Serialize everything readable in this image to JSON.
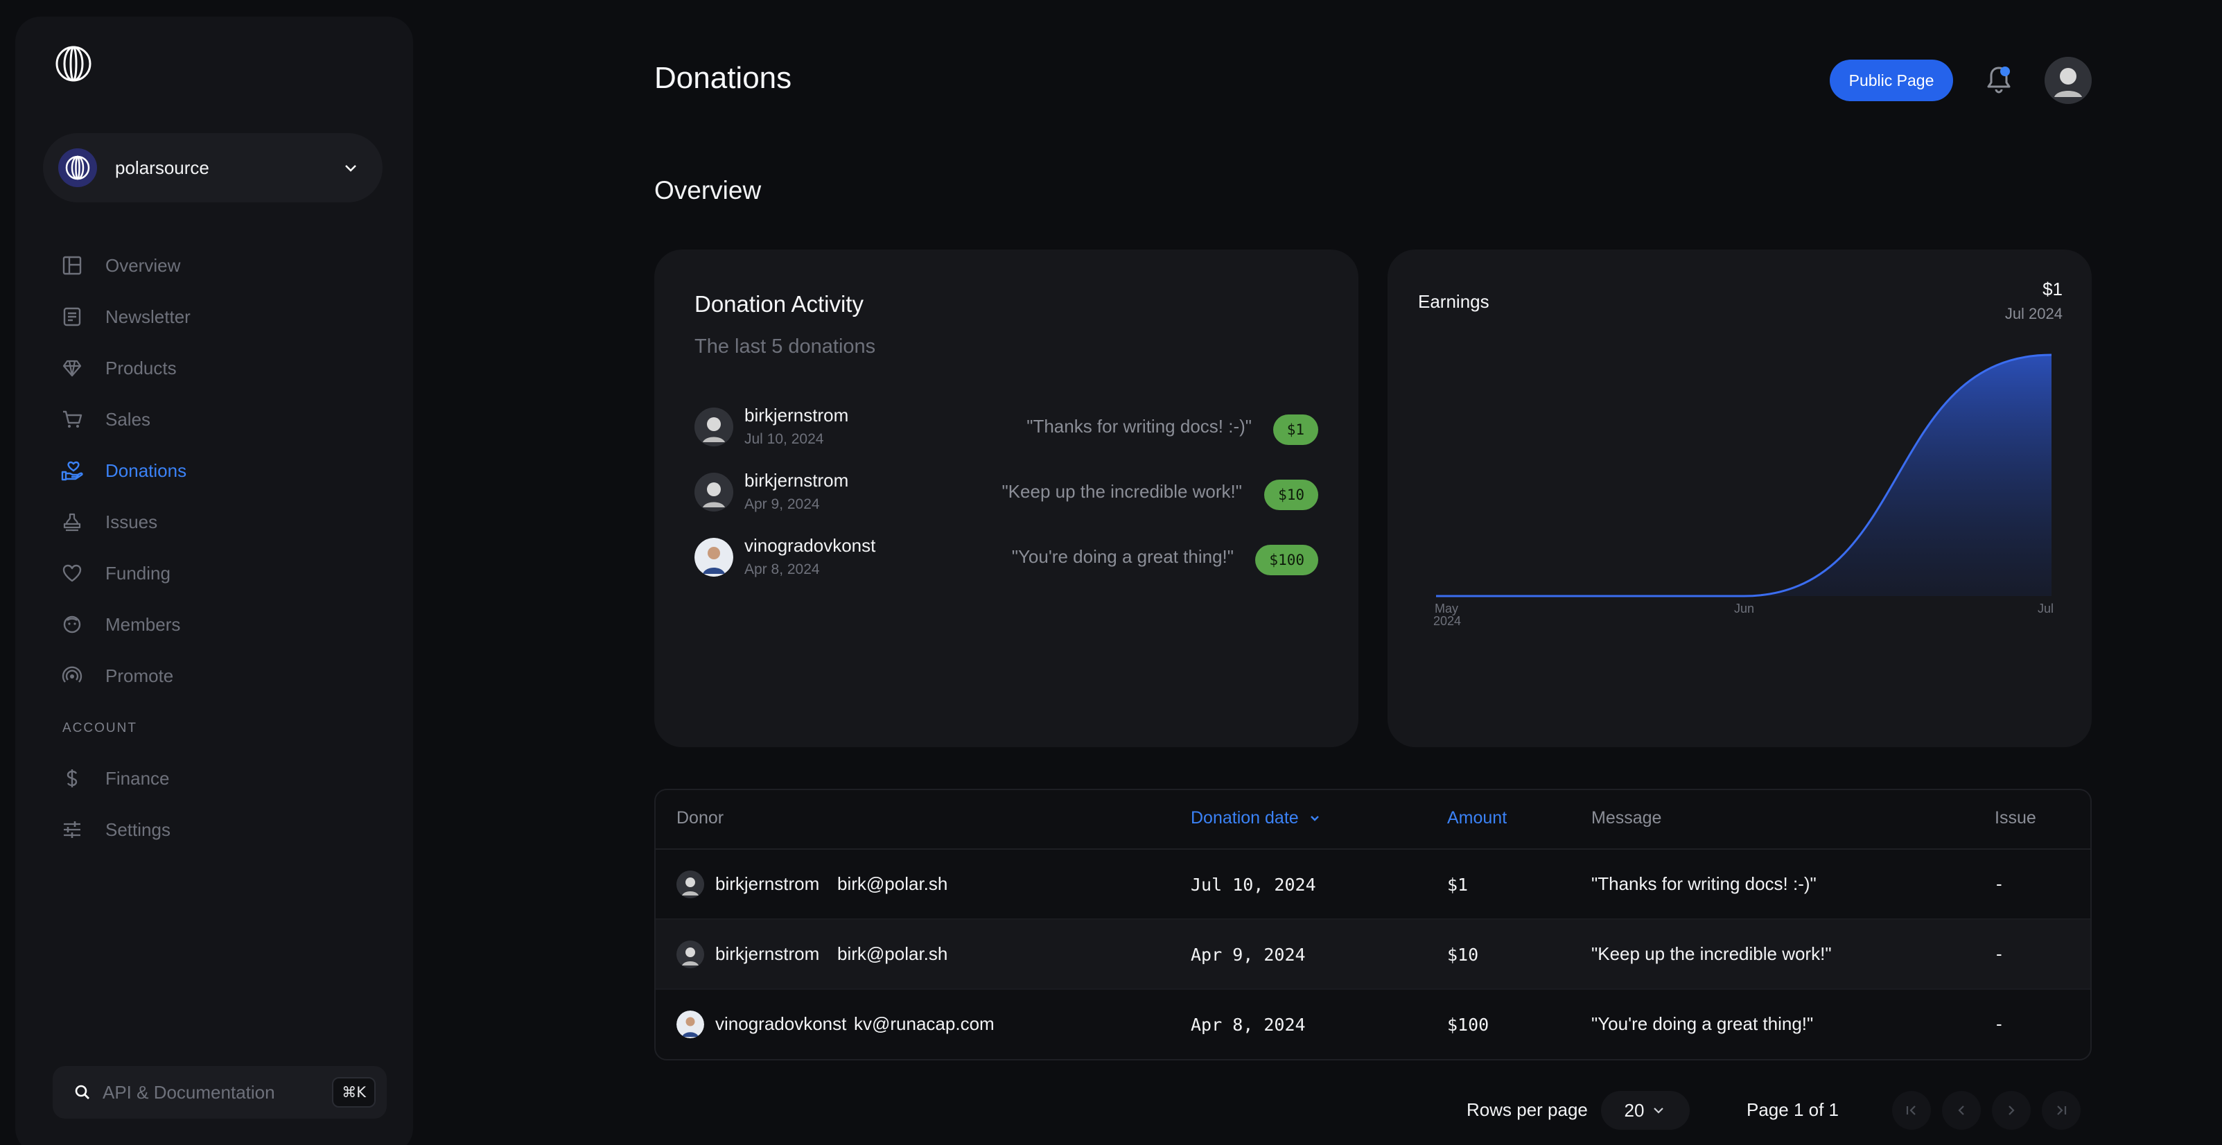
{
  "sidebar": {
    "org_name": "polarsource",
    "items": [
      {
        "label": "Overview",
        "icon": "layout-icon"
      },
      {
        "label": "Newsletter",
        "icon": "newsletter-icon"
      },
      {
        "label": "Products",
        "icon": "diamond-icon"
      },
      {
        "label": "Sales",
        "icon": "cart-icon"
      },
      {
        "label": "Donations",
        "icon": "hand-heart-icon",
        "active": true
      },
      {
        "label": "Issues",
        "icon": "stamp-icon"
      },
      {
        "label": "Funding",
        "icon": "heart-icon"
      },
      {
        "label": "Members",
        "icon": "face-icon"
      },
      {
        "label": "Promote",
        "icon": "broadcast-icon"
      }
    ],
    "account_label": "ACCOUNT",
    "account_items": [
      {
        "label": "Finance",
        "icon": "dollar-icon"
      },
      {
        "label": "Settings",
        "icon": "sliders-icon"
      }
    ],
    "search_placeholder": "API & Documentation",
    "search_shortcut": "⌘K"
  },
  "header": {
    "title": "Donations",
    "public_page_label": "Public Page"
  },
  "overview_title": "Overview",
  "activity": {
    "title": "Donation Activity",
    "subtitle": "The last 5 donations",
    "rows": [
      {
        "name": "birkjernstrom",
        "date": "Jul 10, 2024",
        "message": "\"Thanks for writing docs! :-)\"",
        "amount": "$1"
      },
      {
        "name": "birkjernstrom",
        "date": "Apr 9, 2024",
        "message": "\"Keep up the incredible work!\"",
        "amount": "$10"
      },
      {
        "name": "vinogradovkonst",
        "date": "Apr 8, 2024",
        "message": "\"You're doing a great thing!\"",
        "amount": "$100"
      }
    ]
  },
  "earnings": {
    "title": "Earnings",
    "value": "$1",
    "period": "Jul 2024",
    "x_labels": [
      "May",
      "Jun",
      "Jul"
    ],
    "x_sub_label": "2024",
    "line_color": "#3b6df0"
  },
  "chart_data": {
    "type": "area",
    "title": "Earnings",
    "x": [
      "May 2024",
      "Jun 2024",
      "Jul 2024"
    ],
    "series": [
      {
        "values": [
          0,
          0,
          1
        ]
      }
    ],
    "xlabel": "",
    "ylabel": ""
  },
  "table": {
    "headers": {
      "donor": "Donor",
      "date": "Donation date",
      "amount": "Amount",
      "message": "Message",
      "issue": "Issue"
    },
    "rows": [
      {
        "name": "birkjernstrom",
        "email": "birk@polar.sh",
        "date": "Jul 10, 2024",
        "amount": "$1",
        "message": "\"Thanks for writing docs! :-)\"",
        "issue": "-"
      },
      {
        "name": "birkjernstrom",
        "email": "birk@polar.sh",
        "date": "Apr 9, 2024",
        "amount": "$10",
        "message": "\"Keep up the incredible work!\"",
        "issue": "-"
      },
      {
        "name": "vinogradovkonst",
        "email": "kv@runacap.com",
        "date": "Apr 8, 2024",
        "amount": "$100",
        "message": "\"You're doing a great thing!\"",
        "issue": "-"
      }
    ]
  },
  "pagination": {
    "rows_per_page_label": "Rows per page",
    "rows_per_page": "20",
    "page_label": "Page 1 of 1"
  }
}
